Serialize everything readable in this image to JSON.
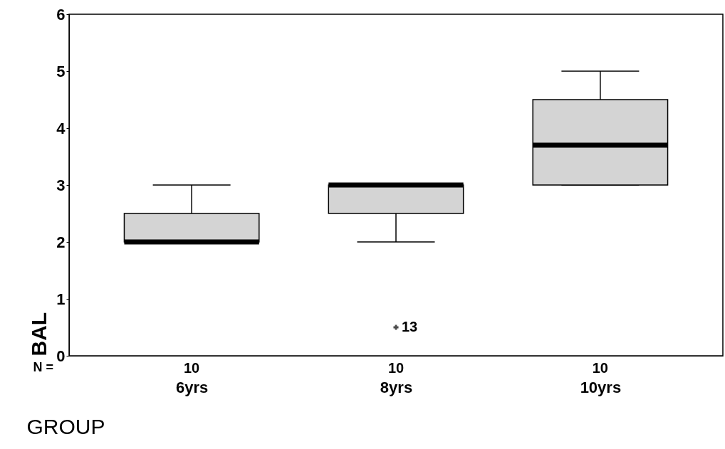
{
  "chart_data": {
    "type": "box",
    "xlabel": "GROUP",
    "ylabel": "BAL",
    "categories": [
      "6yrs",
      "8yrs",
      "10yrs"
    ],
    "series": [
      {
        "color": "#d4d4d4",
        "boxes": [
          {
            "low": 2,
            "q1": 2,
            "median": 2,
            "q3": 2.5,
            "high": 3
          },
          {
            "low": 2,
            "q1": 2.5,
            "median": 3,
            "q3": 3,
            "high": 3,
            "outliers": [
              0.5
            ]
          },
          {
            "low": 3,
            "q1": 3,
            "median": 3.7,
            "q3": 4.5,
            "high": 5
          }
        ]
      }
    ],
    "ylim": [
      0,
      6
    ],
    "yticks": [
      0,
      1,
      2,
      3,
      4,
      5,
      6
    ],
    "grid": false,
    "annotations": [
      "N =",
      "10",
      "10",
      "10",
      "13"
    ]
  }
}
